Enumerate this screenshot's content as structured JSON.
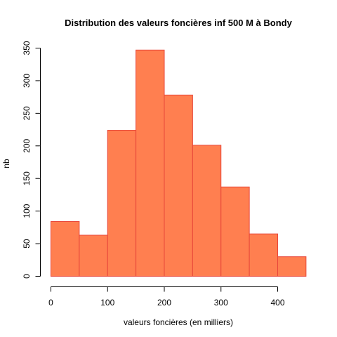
{
  "chart_data": {
    "type": "bar",
    "title": "Distribution des valeurs foncières inf 500 M à Bondy",
    "xlabel": "valeurs foncières (en milliers)",
    "ylabel": "nb",
    "bins": [
      {
        "start": 0,
        "end": 50,
        "count": 84
      },
      {
        "start": 50,
        "end": 100,
        "count": 63
      },
      {
        "start": 100,
        "end": 150,
        "count": 224
      },
      {
        "start": 150,
        "end": 200,
        "count": 347
      },
      {
        "start": 200,
        "end": 250,
        "count": 278
      },
      {
        "start": 250,
        "end": 300,
        "count": 201
      },
      {
        "start": 300,
        "end": 350,
        "count": 137
      },
      {
        "start": 350,
        "end": 400,
        "count": 65
      },
      {
        "start": 400,
        "end": 450,
        "count": 30
      }
    ],
    "x_ticks": [
      0,
      100,
      200,
      300,
      400
    ],
    "y_ticks": [
      0,
      50,
      100,
      150,
      200,
      250,
      300,
      350
    ],
    "xlim": [
      0,
      450
    ],
    "ylim": [
      0,
      350
    ],
    "bar_fill": "#FF7F50",
    "bar_stroke": "#E8473A",
    "grid": false
  }
}
